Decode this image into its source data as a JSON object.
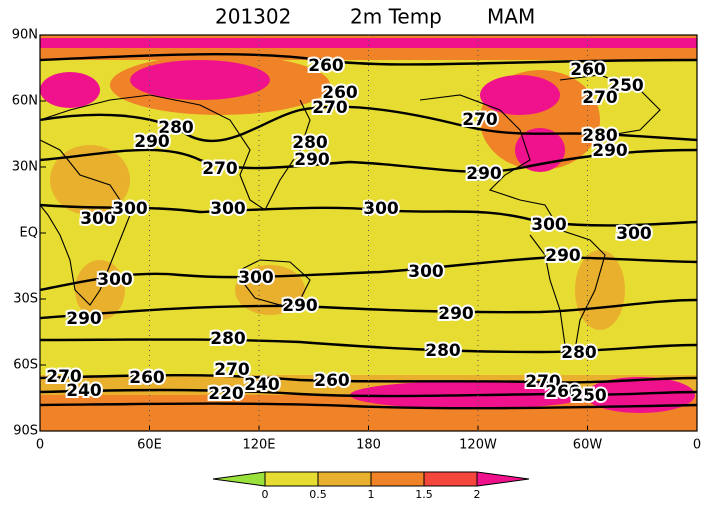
{
  "map": {
    "title": {
      "date": "201302",
      "variable": "2m Temp",
      "season": "MAM"
    },
    "x_ticks": [
      "0",
      "60E",
      "120E",
      "180",
      "120W",
      "60W",
      "0"
    ],
    "y_ticks": [
      "90N",
      "60N",
      "30N",
      "EQ",
      "30S",
      "60S",
      "90S"
    ],
    "contour_labels": [
      260,
      260,
      250,
      260,
      270,
      270,
      280,
      290,
      270,
      280,
      280,
      290,
      290,
      270,
      290,
      300,
      300,
      300,
      300,
      300,
      300,
      300,
      300,
      300,
      290,
      290,
      290,
      290,
      280,
      280,
      280,
      270,
      260,
      270,
      240,
      220,
      260,
      270,
      260,
      250,
      240
    ],
    "colorbar": {
      "ticks": [
        0,
        0.5,
        1,
        1.5,
        2
      ],
      "colors": [
        "#9be13c",
        "#e6dc32",
        "#e9b02e",
        "#f08228",
        "#f5463c",
        "#f0128c"
      ]
    }
  }
}
